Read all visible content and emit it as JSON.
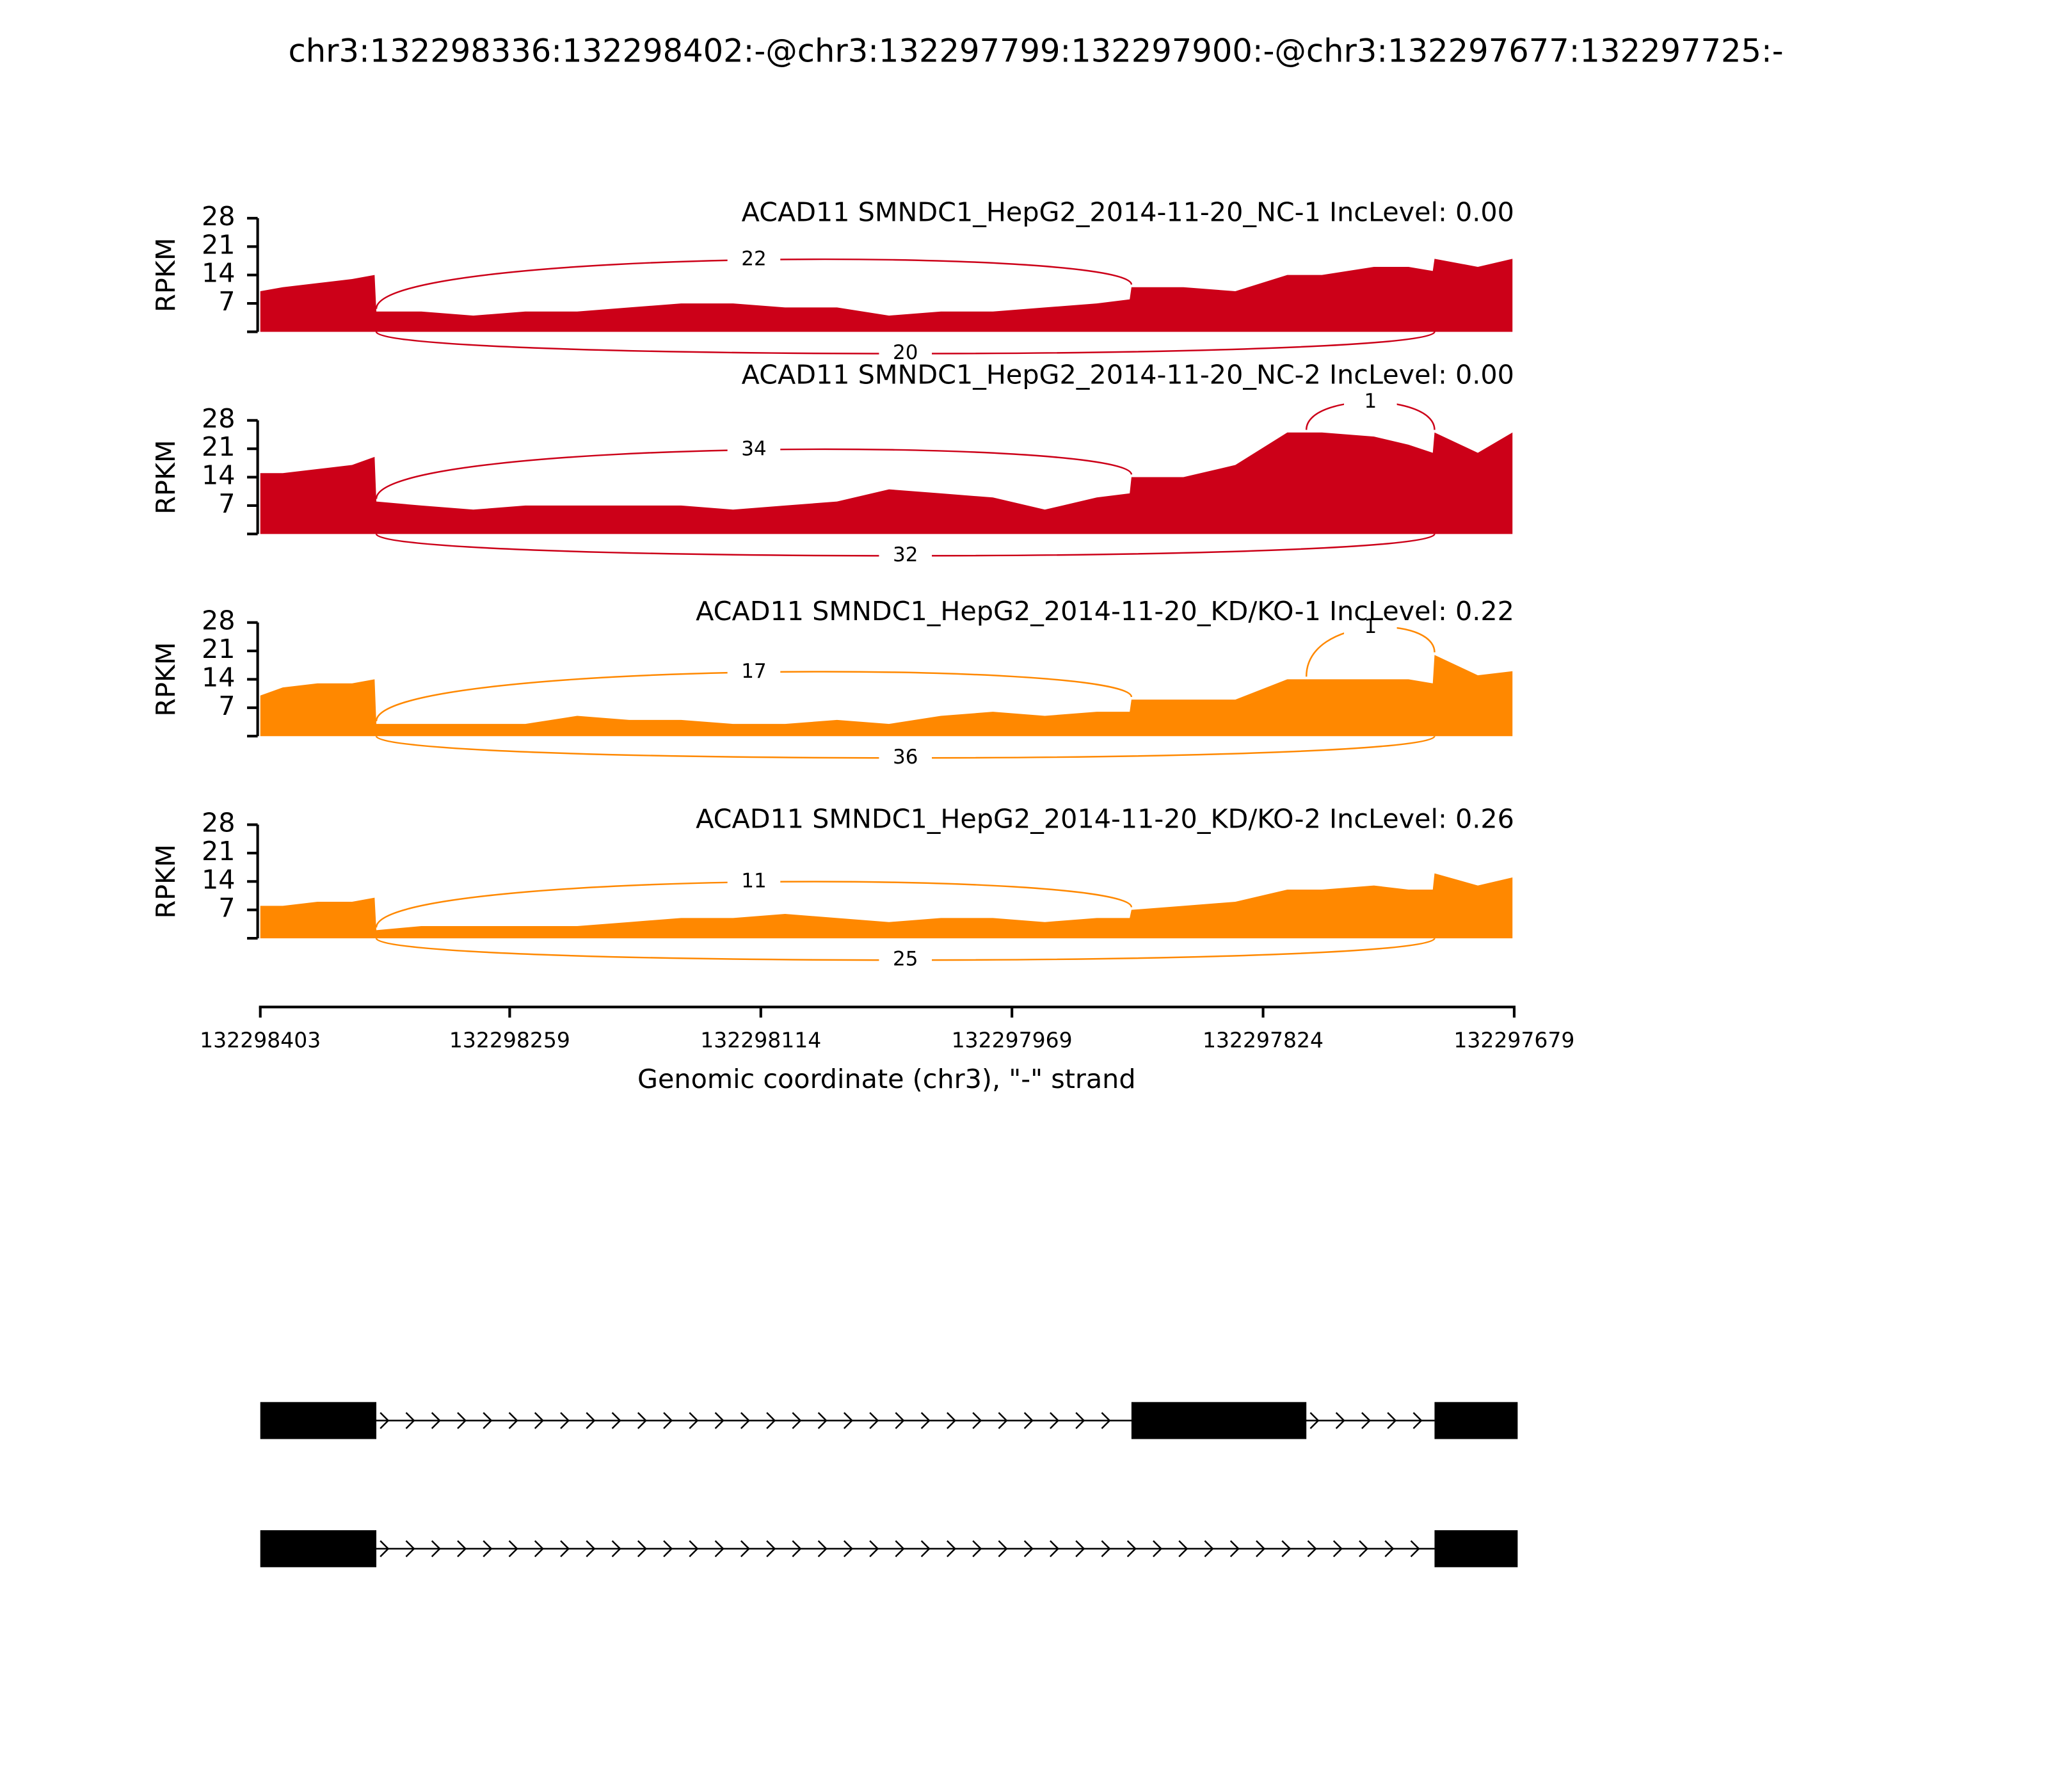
{
  "title": "chr3:132298336:132298402:-@chr3:132297799:132297900:-@chr3:132297677:132297725:-",
  "chart_data": [
    {
      "type": "area",
      "title": "ACAD11 SMNDC1_HepG2_2014-11-20_NC-1 IncLevel: 0.00",
      "y_label": "RPKM",
      "color": "#cc0018",
      "ylim": [
        0,
        28
      ],
      "yticks": [
        7,
        14,
        21,
        28
      ],
      "x": [
        132298403,
        132298390,
        132298370,
        132298350,
        132298337,
        132298336,
        132298310,
        132298280,
        132298250,
        132298220,
        132298190,
        132298160,
        132298130,
        132298100,
        132298070,
        132298040,
        132298010,
        132297980,
        132297950,
        132297920,
        132297901,
        132297900,
        132297870,
        132297840,
        132297810,
        132297790,
        132297760,
        132297740,
        132297726,
        132297725,
        132297700,
        132297680
      ],
      "values": [
        10,
        11,
        12,
        13,
        14,
        5,
        5,
        4,
        5,
        5,
        6,
        7,
        7,
        6,
        6,
        4,
        5,
        5,
        6,
        7,
        8,
        11,
        11,
        10,
        14,
        14,
        16,
        16,
        15,
        18,
        16,
        18
      ],
      "junctions": [
        {
          "start": 132298336,
          "end": 132297900,
          "count": 22,
          "side": "above"
        },
        {
          "start": 132298336,
          "end": 132297725,
          "count": 20,
          "side": "below"
        }
      ]
    },
    {
      "type": "area",
      "title": "ACAD11 SMNDC1_HepG2_2014-11-20_NC-2 IncLevel: 0.00",
      "y_label": "RPKM",
      "color": "#cc0018",
      "ylim": [
        0,
        28
      ],
      "yticks": [
        7,
        14,
        21,
        28
      ],
      "x": [
        132298403,
        132298390,
        132298370,
        132298350,
        132298337,
        132298336,
        132298310,
        132298280,
        132298250,
        132298220,
        132298190,
        132298160,
        132298130,
        132298100,
        132298070,
        132298040,
        132298010,
        132297980,
        132297950,
        132297920,
        132297901,
        132297900,
        132297870,
        132297840,
        132297810,
        132297790,
        132297760,
        132297740,
        132297726,
        132297725,
        132297700,
        132297680
      ],
      "values": [
        15,
        15,
        16,
        17,
        19,
        8,
        7,
        6,
        7,
        7,
        7,
        7,
        6,
        7,
        8,
        11,
        10,
        9,
        6,
        9,
        10,
        14,
        14,
        17,
        25,
        25,
        24,
        22,
        20,
        25,
        20,
        25
      ],
      "junctions": [
        {
          "start": 132298336,
          "end": 132297900,
          "count": 34,
          "side": "above"
        },
        {
          "start": 132298336,
          "end": 132297725,
          "count": 32,
          "side": "below"
        },
        {
          "start": 132297799,
          "end": 132297725,
          "count": 1,
          "side": "above"
        }
      ]
    },
    {
      "type": "area",
      "title": "ACAD11 SMNDC1_HepG2_2014-11-20_KD/KO-1 IncLevel: 0.22",
      "y_label": "RPKM",
      "color": "#ff8800",
      "ylim": [
        0,
        28
      ],
      "yticks": [
        7,
        14,
        21,
        28
      ],
      "x": [
        132298403,
        132298390,
        132298370,
        132298350,
        132298337,
        132298336,
        132298310,
        132298280,
        132298250,
        132298220,
        132298190,
        132298160,
        132298130,
        132298100,
        132298070,
        132298040,
        132298010,
        132297980,
        132297950,
        132297920,
        132297901,
        132297900,
        132297870,
        132297840,
        132297810,
        132297790,
        132297760,
        132297740,
        132297726,
        132297725,
        132297700,
        132297680
      ],
      "values": [
        10,
        12,
        13,
        13,
        14,
        3,
        3,
        3,
        3,
        5,
        4,
        4,
        3,
        3,
        4,
        3,
        5,
        6,
        5,
        6,
        6,
        9,
        9,
        9,
        14,
        14,
        14,
        14,
        13,
        20,
        15,
        16
      ],
      "junctions": [
        {
          "start": 132298336,
          "end": 132297900,
          "count": 17,
          "side": "above"
        },
        {
          "start": 132298336,
          "end": 132297725,
          "count": 36,
          "side": "below"
        },
        {
          "start": 132297799,
          "end": 132297725,
          "count": 1,
          "side": "above"
        }
      ]
    },
    {
      "type": "area",
      "title": "ACAD11 SMNDC1_HepG2_2014-11-20_KD/KO-2 IncLevel: 0.26",
      "y_label": "RPKM",
      "color": "#ff8800",
      "ylim": [
        0,
        28
      ],
      "yticks": [
        7,
        14,
        21,
        28
      ],
      "x": [
        132298403,
        132298390,
        132298370,
        132298350,
        132298337,
        132298336,
        132298310,
        132298280,
        132298250,
        132298220,
        132298190,
        132298160,
        132298130,
        132298100,
        132298070,
        132298040,
        132298010,
        132297980,
        132297950,
        132297920,
        132297901,
        132297900,
        132297870,
        132297840,
        132297810,
        132297790,
        132297760,
        132297740,
        132297726,
        132297725,
        132297700,
        132297680
      ],
      "values": [
        8,
        8,
        9,
        9,
        10,
        2,
        3,
        3,
        3,
        3,
        4,
        5,
        5,
        6,
        5,
        4,
        5,
        5,
        4,
        5,
        5,
        7,
        8,
        9,
        12,
        12,
        13,
        12,
        12,
        16,
        13,
        15
      ],
      "junctions": [
        {
          "start": 132298336,
          "end": 132297900,
          "count": 11,
          "side": "above"
        },
        {
          "start": 132298336,
          "end": 132297725,
          "count": 25,
          "side": "below"
        }
      ]
    }
  ],
  "x_axis": {
    "label": "Genomic coordinate (chr3), \"-\" strand",
    "xlim": [
      132298403,
      132297679
    ],
    "xticks": [
      132298403,
      132298259,
      132298114,
      132297969,
      132297824,
      132297679
    ]
  },
  "gene_model": {
    "transcripts": [
      {
        "exons": [
          [
            132298403,
            132298336
          ],
          [
            132297900,
            132297799
          ],
          [
            132297725,
            132297677
          ]
        ]
      },
      {
        "exons": [
          [
            132298403,
            132298336
          ],
          [
            132297725,
            132297677
          ]
        ]
      }
    ]
  }
}
